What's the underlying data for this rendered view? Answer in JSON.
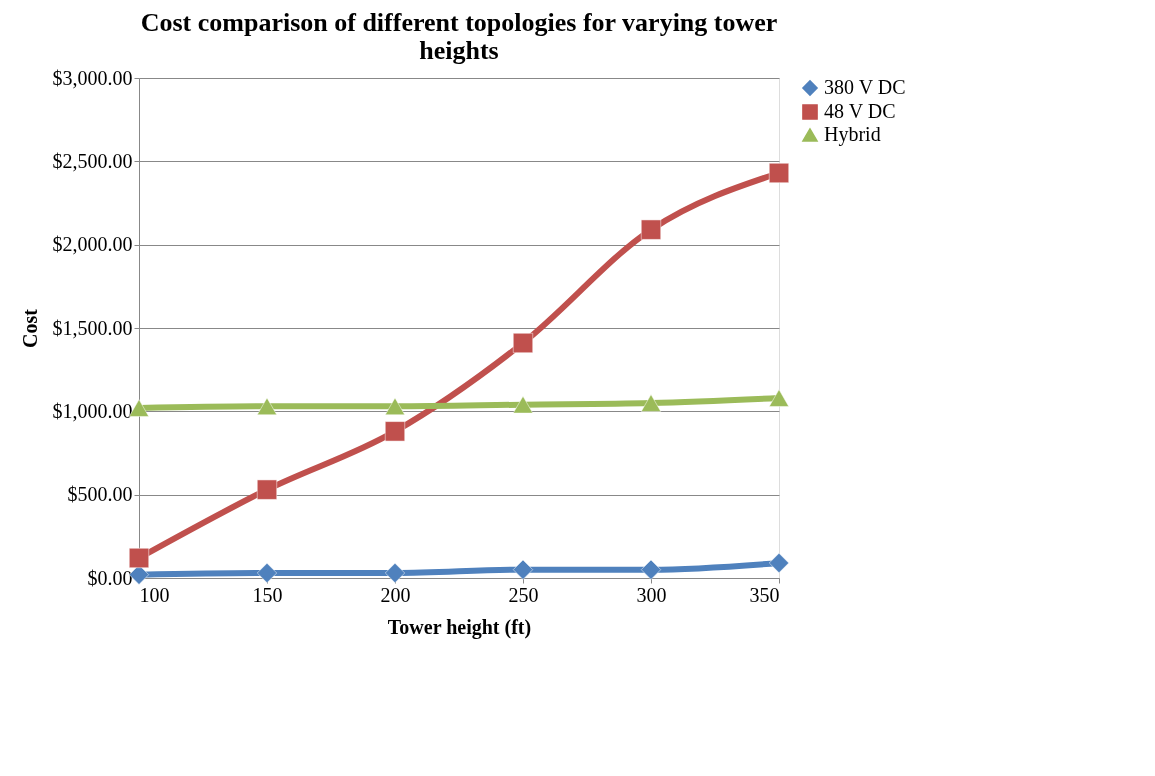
{
  "chart_data": {
    "type": "line",
    "title": "Cost comparison of different topologies for varying tower heights",
    "xlabel": "Tower height (ft)",
    "ylabel": "Cost",
    "x": [
      100,
      150,
      200,
      250,
      300,
      350
    ],
    "series": [
      {
        "name": "380 V DC",
        "color": "#4f81bd",
        "marker": "diamond",
        "values": [
          20,
          30,
          30,
          50,
          50,
          90
        ]
      },
      {
        "name": "48 V DC",
        "color": "#c0504d",
        "marker": "square",
        "values": [
          120,
          530,
          880,
          1410,
          2090,
          2430
        ]
      },
      {
        "name": "Hybrid",
        "color": "#9bbb59",
        "marker": "triangle",
        "values": [
          1020,
          1030,
          1030,
          1040,
          1050,
          1080
        ]
      }
    ],
    "xlim": [
      100,
      350
    ],
    "xticks": [
      100,
      150,
      200,
      250,
      300,
      350
    ],
    "ylim": [
      0,
      3000
    ],
    "yticks": [
      {
        "value": 0,
        "label": "$0.00"
      },
      {
        "value": 500,
        "label": "$500.00"
      },
      {
        "value": 1000,
        "label": "$1,000.00"
      },
      {
        "value": 1500,
        "label": "$1,500.00"
      },
      {
        "value": 2000,
        "label": "$2,000.00"
      },
      {
        "value": 2500,
        "label": "$2,500.00"
      },
      {
        "value": 3000,
        "label": "$3,000.00"
      }
    ],
    "grid": "y",
    "legend": "right",
    "line_style": "solid"
  }
}
